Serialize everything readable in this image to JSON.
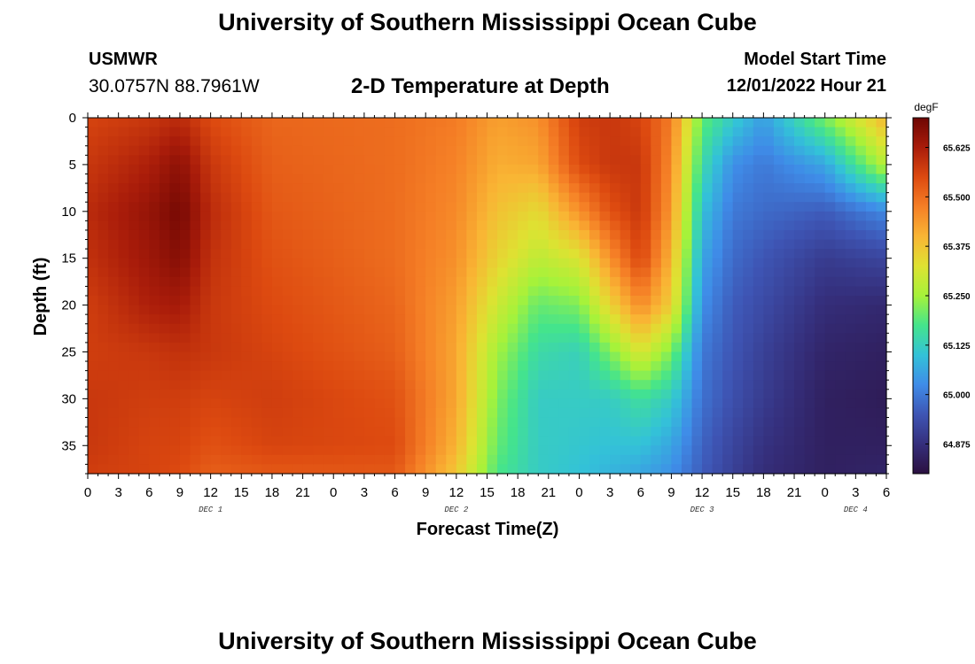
{
  "header": {
    "title": "University of Southern Mississippi Ocean Cube",
    "station": "USMWR",
    "coords": "30.0757N  88.7961W",
    "subtitle": "2-D Temperature at Depth",
    "model_start_label": "Model Start Time",
    "model_start_value": "12/01/2022 Hour 21"
  },
  "footer": {
    "title": "University of Southern Mississippi Ocean Cube"
  },
  "chart_data": {
    "type": "heatmap",
    "title": "2-D Temperature at Depth",
    "xlabel": "Forecast Time(Z)",
    "ylabel": "Depth (ft)",
    "x_ticks": [
      "0",
      "3",
      "6",
      "9",
      "12",
      "15",
      "18",
      "21",
      "0",
      "3",
      "6",
      "9",
      "12",
      "15",
      "18",
      "21",
      "0",
      "3",
      "6",
      "9",
      "12",
      "15",
      "18",
      "21",
      "0",
      "3",
      "6"
    ],
    "day_labels": [
      {
        "label": "DEC 1",
        "hour": 12
      },
      {
        "label": "DEC 2",
        "hour": 36
      },
      {
        "label": "DEC 3",
        "hour": 60
      },
      {
        "label": "DEC 4",
        "hour": 75
      }
    ],
    "x_range_hours": [
      0,
      78
    ],
    "y_ticks": [
      "0",
      "5",
      "10",
      "15",
      "20",
      "25",
      "30",
      "35"
    ],
    "y_range_ft": [
      0,
      38
    ],
    "colorbar": {
      "unit": "degF",
      "range": [
        64.8,
        65.7
      ],
      "ticks": [
        "65.625",
        "65.500",
        "65.375",
        "65.250",
        "65.125",
        "65.000",
        "64.875"
      ],
      "tick_values": [
        65.625,
        65.5,
        65.375,
        65.25,
        65.125,
        65.0,
        64.875
      ],
      "colors": [
        "#2b1040",
        "#352f7c",
        "#3e55b4",
        "#3f8ce8",
        "#33c2d8",
        "#44e48c",
        "#a6f23a",
        "#dee232",
        "#f9b534",
        "#f57f26",
        "#dd4a10",
        "#a91c0a",
        "#6e0603"
      ]
    },
    "grid_times_hours": [
      0,
      6,
      9,
      12,
      18,
      30,
      36,
      40,
      44,
      48,
      51,
      54,
      57,
      60,
      63,
      66,
      72,
      78
    ],
    "grid_depths_ft": [
      0,
      5,
      10,
      15,
      20,
      25,
      30,
      35,
      38
    ],
    "values_degF": [
      [
        65.56,
        65.58,
        65.6,
        65.59,
        65.57,
        65.57,
        65.58,
        65.58,
        65.57
      ],
      [
        65.58,
        65.62,
        65.65,
        65.64,
        65.62,
        65.58,
        65.57,
        65.56,
        65.56
      ],
      [
        65.6,
        65.66,
        65.69,
        65.67,
        65.63,
        65.59,
        65.57,
        65.56,
        65.55
      ],
      [
        65.55,
        65.58,
        65.6,
        65.59,
        65.58,
        65.58,
        65.56,
        65.54,
        65.52
      ],
      [
        65.51,
        65.52,
        65.53,
        65.54,
        65.55,
        65.56,
        65.57,
        65.56,
        65.53
      ],
      [
        65.5,
        65.5,
        65.5,
        65.5,
        65.51,
        65.52,
        65.54,
        65.55,
        65.53
      ],
      [
        65.48,
        65.47,
        65.46,
        65.45,
        65.43,
        65.42,
        65.42,
        65.4,
        65.37
      ],
      [
        65.43,
        65.41,
        65.38,
        65.35,
        65.3,
        65.25,
        65.22,
        65.2,
        65.18
      ],
      [
        65.45,
        65.42,
        65.34,
        65.28,
        65.2,
        65.15,
        65.12,
        65.12,
        65.12
      ],
      [
        65.57,
        65.55,
        65.45,
        65.32,
        65.22,
        65.13,
        65.12,
        65.11,
        65.1
      ],
      [
        65.58,
        65.58,
        65.54,
        65.45,
        65.35,
        65.22,
        65.12,
        65.1,
        65.08
      ],
      [
        65.56,
        65.58,
        65.58,
        65.56,
        65.46,
        65.32,
        65.16,
        65.1,
        65.06
      ],
      [
        65.48,
        65.46,
        65.44,
        65.4,
        65.36,
        65.22,
        65.12,
        65.06,
        65.03
      ],
      [
        65.2,
        65.15,
        65.1,
        65.06,
        65.03,
        65.0,
        64.99,
        64.97,
        64.96
      ],
      [
        65.12,
        65.03,
        65.0,
        64.98,
        64.96,
        64.95,
        64.94,
        64.92,
        64.91
      ],
      [
        65.05,
        65.0,
        64.98,
        64.95,
        64.93,
        64.91,
        64.9,
        64.88,
        64.87
      ],
      [
        65.22,
        65.06,
        64.96,
        64.9,
        64.87,
        64.85,
        64.84,
        64.84,
        64.84
      ],
      [
        65.4,
        65.28,
        65.02,
        64.92,
        64.86,
        64.84,
        64.83,
        64.84,
        64.85
      ]
    ]
  }
}
